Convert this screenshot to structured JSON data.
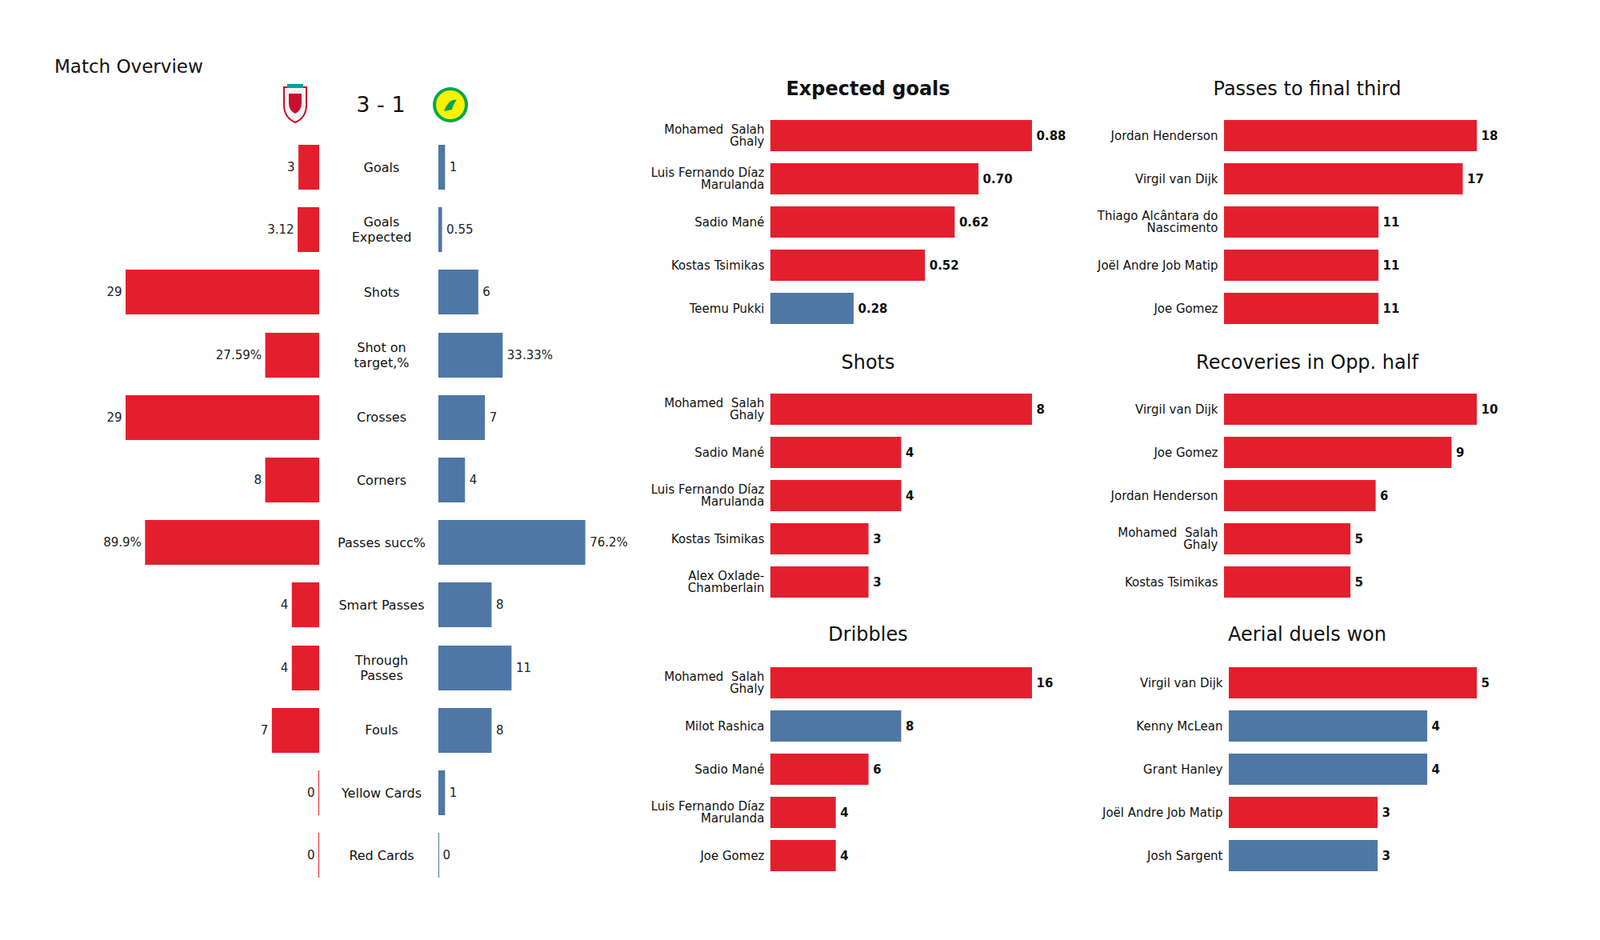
{
  "chart_data": [
    {
      "type": "diverging_bar",
      "title": "Match Overview",
      "subtitle": "3 - 1",
      "orientation": "horizontal",
      "data_labels": true,
      "categories": [
        "Goals",
        "Goals Expected",
        "Shots",
        "Shot on target,%",
        "Crosses",
        "Corners",
        "Passes succ%",
        "Smart Passes",
        "Through Passes",
        "Fouls",
        "Yellow Cards",
        "Red Cards"
      ],
      "xlims": [
        [
          0,
          29
        ],
        [
          0,
          29
        ],
        [
          0,
          29
        ],
        [
          0,
          100
        ],
        [
          0,
          29
        ],
        [
          0,
          29
        ],
        [
          0,
          100
        ],
        [
          0,
          29
        ],
        [
          0,
          29
        ],
        [
          0,
          29
        ],
        [
          0,
          29
        ],
        [
          0,
          29
        ]
      ],
      "series": [
        {
          "color": "#e41f2d",
          "values": [
            3,
            3.12,
            29,
            27.59,
            29,
            8,
            89.9,
            4,
            4,
            7,
            0,
            0
          ],
          "value_labels": [
            "3",
            "3.12",
            "29",
            "27.59%",
            "29",
            "8",
            "89.9%",
            "4",
            "4",
            "7",
            "0",
            "0"
          ]
        },
        {
          "color": "#4e77a6",
          "values": [
            1,
            0.55,
            6,
            33.33,
            7,
            4,
            76.2,
            8,
            11,
            8,
            1,
            0
          ],
          "value_labels": [
            "1",
            "0.55",
            "6",
            "33.33%",
            "7",
            "4",
            "76.2%",
            "8",
            "11",
            "8",
            "1",
            "0"
          ]
        }
      ]
    },
    {
      "type": "bar",
      "title": "Expected goals",
      "orientation": "horizontal",
      "data_labels": true,
      "tick_labels": "y",
      "categories": [
        "Mohamed  Salah Ghaly",
        "Luis Fernando Díaz Marulanda",
        "Sadio Mané",
        "Kostas Tsimikas",
        "Teemu Pukki"
      ],
      "values": [
        0.88,
        0.7,
        0.62,
        0.52,
        0.28
      ],
      "value_labels": [
        "0.88",
        "0.70",
        "0.62",
        "0.52",
        "0.28"
      ],
      "colors": [
        "#e41f2d",
        "#e41f2d",
        "#e41f2d",
        "#e41f2d",
        "#4e77a6"
      ],
      "xlim": [
        0,
        0.88
      ]
    },
    {
      "type": "bar",
      "title": "Shots",
      "orientation": "horizontal",
      "data_labels": true,
      "tick_labels": "y",
      "categories": [
        "Mohamed  Salah Ghaly",
        "Sadio Mané",
        "Luis Fernando Díaz Marulanda",
        "Kostas Tsimikas",
        "Alex Oxlade-Chamberlain"
      ],
      "values": [
        8,
        4,
        4,
        3,
        3
      ],
      "colors": [
        "#e41f2d",
        "#e41f2d",
        "#e41f2d",
        "#e41f2d",
        "#e41f2d"
      ],
      "xlim": [
        0,
        8
      ]
    },
    {
      "type": "bar",
      "title": "Dribbles",
      "orientation": "horizontal",
      "data_labels": true,
      "tick_labels": "y",
      "categories": [
        "Mohamed  Salah Ghaly",
        "Milot Rashica",
        "Sadio Mané",
        "Luis Fernando Díaz Marulanda",
        "Joe Gomez"
      ],
      "values": [
        16,
        8,
        6,
        4,
        4
      ],
      "colors": [
        "#e41f2d",
        "#4e77a6",
        "#e41f2d",
        "#e41f2d",
        "#e41f2d"
      ],
      "xlim": [
        0,
        16
      ]
    },
    {
      "type": "bar",
      "title": "Passes to final third",
      "orientation": "horizontal",
      "data_labels": true,
      "tick_labels": "y",
      "categories": [
        "Jordan Henderson",
        "Virgil van Dijk",
        "Thiago Alcântara do Nascimento",
        "Joël Andre Job Matip",
        "Joe Gomez"
      ],
      "values": [
        18,
        17,
        11,
        11,
        11
      ],
      "colors": [
        "#e41f2d",
        "#e41f2d",
        "#e41f2d",
        "#e41f2d",
        "#e41f2d"
      ],
      "xlim": [
        0,
        18
      ]
    },
    {
      "type": "bar",
      "title": "Recoveries in Opp. half",
      "orientation": "horizontal",
      "data_labels": true,
      "tick_labels": "y",
      "categories": [
        "Virgil van Dijk",
        "Joe Gomez",
        "Jordan Henderson",
        "Mohamed  Salah Ghaly",
        "Kostas Tsimikas"
      ],
      "values": [
        10,
        9,
        6,
        5,
        5
      ],
      "colors": [
        "#e41f2d",
        "#e41f2d",
        "#e41f2d",
        "#e41f2d",
        "#e41f2d"
      ],
      "xlim": [
        0,
        10
      ]
    },
    {
      "type": "bar",
      "title": "Aerial duels won",
      "orientation": "horizontal",
      "data_labels": true,
      "tick_labels": "y",
      "categories": [
        "Virgil van Dijk",
        "Kenny McLean",
        "Grant Hanley",
        "Joël Andre Job Matip",
        "Josh Sargent"
      ],
      "values": [
        5,
        4,
        4,
        3,
        3
      ],
      "colors": [
        "#e41f2d",
        "#4e77a6",
        "#4e77a6",
        "#e41f2d",
        "#4e77a6"
      ],
      "xlim": [
        0,
        5
      ]
    }
  ]
}
